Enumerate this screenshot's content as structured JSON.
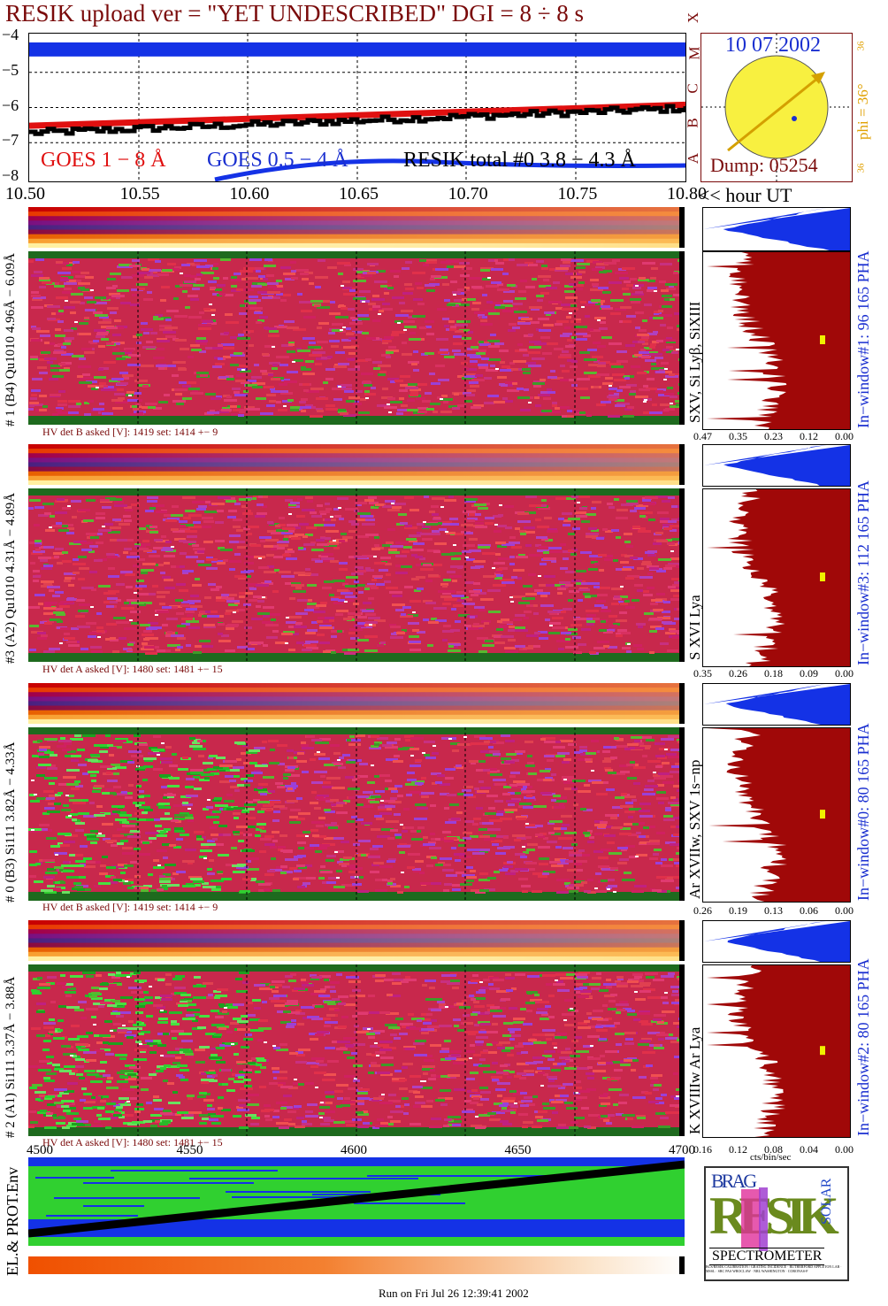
{
  "header": {
    "title": "RESIK upload ver = \"YET UNDESCRIBED\"  DGI =   8 ÷   8 s"
  },
  "lightcurve": {
    "y_ticks": [
      "−4",
      "−5",
      "−6",
      "−7",
      "−8"
    ],
    "class_letters": [
      "X",
      "M",
      "C",
      "B",
      "A"
    ],
    "legend": {
      "goes1": "GOES 1 − 8 Å",
      "goes05": "GOES 0.5 − 4 Å",
      "resik": "RESIK total #0  3.8 − 4.3 Å"
    }
  },
  "sun": {
    "date": "10 07 2002",
    "phi": "phi = 36°",
    "phi_top": "36",
    "phi_bottom": "36",
    "dump": "Dump: 05254"
  },
  "time_axis": {
    "ticks": [
      "10.50",
      "10.55",
      "10.60",
      "10.65",
      "10.70",
      "10.75",
      "10.80"
    ],
    "unit": "<< hour UT"
  },
  "channels": [
    {
      "id": "ch1",
      "left_label": "# 1 (B4) Qu1010 4.96Å − 6.09Å",
      "line_label": "SXV, Si Lyβ, SiXIII",
      "hv": "HV det B asked [V]:  1419 set:  1414  +−    9",
      "window": "In−window#1:   96 165  PHA",
      "x_ticks": [
        "0.47",
        "0.35",
        "0.23",
        "0.12",
        "0.00"
      ]
    },
    {
      "id": "ch3",
      "left_label": "#3 (A2) Qu1010  4.31Å − 4.89Å",
      "line_label": "S XVI Lya",
      "hv": "HV det A asked [V]:  1480 set:  1481  +−    15",
      "window": "In−window#3:  112 165  PHA",
      "x_ticks": [
        "0.35",
        "0.26",
        "0.18",
        "0.09",
        "0.00"
      ]
    },
    {
      "id": "ch0",
      "left_label": "# 0 (B3) Si111  3.82Å − 4.33Å",
      "line_label": "Ar XVIIw, SXV 1s−np",
      "hv": "HV det B asked [V]:  1419 set:  1414  +−    9",
      "window": "In−window#0:   80 165  PHA",
      "x_ticks": [
        "0.26",
        "0.19",
        "0.13",
        "0.06",
        "0.00"
      ]
    },
    {
      "id": "ch2",
      "left_label": "# 2 (A1) Si111  3.37Å − 3.88Å",
      "line_label": "K XVIIIw  Ar Lya",
      "hv": "HV det A asked [V]:  1480 set:  1481  +−    15",
      "window": "In−window#2:   80 165  PHA",
      "x_ticks": [
        "0.16",
        "0.12",
        "0.08",
        "0.04",
        "0.00"
      ]
    }
  ],
  "bottom_axis": {
    "ticks": [
      "4500",
      "4550",
      "4600",
      "4650",
      "4700"
    ]
  },
  "right_axis_unit": "cts/bin/sec",
  "env_label": "EL.& PROT.Env",
  "logo": {
    "letters_top": "BRAG",
    "letters_mid": "RESIK",
    "letters_side": "SOLAR",
    "caption": "SPECTROMETER",
    "fine_print": "BCS/RESIK CALIBRATION / GRATING INCIDENCE · RUTHERFORD APPLETON LAB · MSSL · SRC PAS WROCLAW · NRL WASHINGTON · CORONAS-F"
  },
  "footer": "Run on Fri Jul 26 12:39:41 2002",
  "colors": {
    "maroon": "#7a0a0a",
    "goes_long": "#e01010",
    "goes_short": "#1a2fd0",
    "pha_fill": "#a00808",
    "pha_blue": "#1432e6",
    "sun": "#f8f040",
    "phi": "#e0a000"
  }
}
